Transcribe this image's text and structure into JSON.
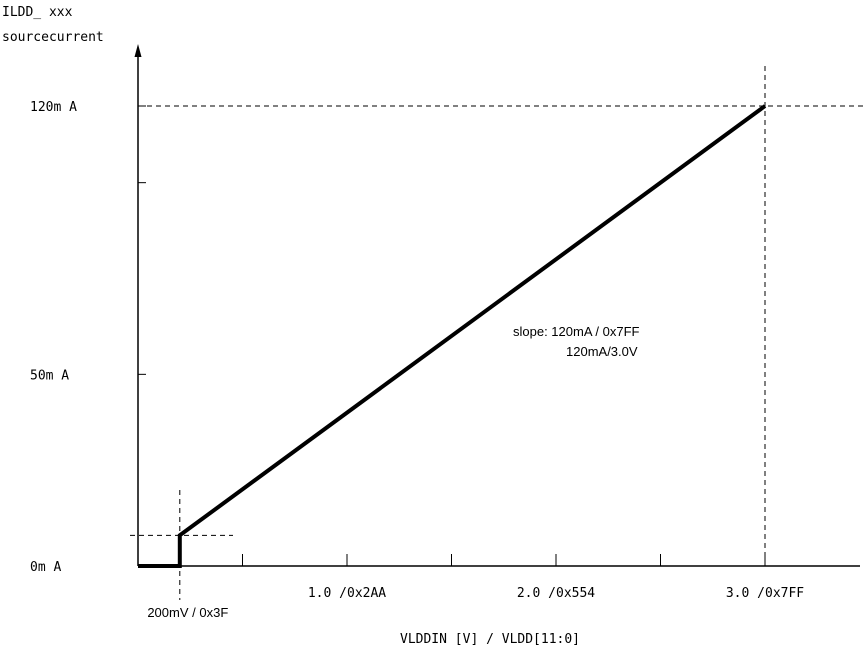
{
  "chart_data": {
    "type": "line",
    "ylabel_line1": "ILDD_ xxx",
    "ylabel_line2": "sourcecurrent",
    "xlabel": "VLDDIN [V] / VLDD[11:0]",
    "xlim": [
      0,
      3.4
    ],
    "ylim": [
      0,
      120
    ],
    "y_ticks": [
      {
        "value": 0,
        "label": "0m A"
      },
      {
        "value": 50,
        "label": "50m A"
      },
      {
        "value": 120,
        "label": "120m A"
      }
    ],
    "y_minor_ticks": [
      100
    ],
    "x_ticks": [
      {
        "value": 1.0,
        "label": "1.0 /0x2AA"
      },
      {
        "value": 2.0,
        "label": "2.0 /0x554"
      },
      {
        "value": 3.0,
        "label": "3.0 /0x7FF"
      }
    ],
    "x_minor_ticks": [
      0.5,
      1.5,
      2.5
    ],
    "x_start_label": "200mV / 0x3F",
    "series": [
      {
        "points": [
          {
            "x": 0.0,
            "y": 0
          },
          {
            "x": 0.2,
            "y": 0
          },
          {
            "x": 0.2,
            "y": 8
          },
          {
            "x": 3.0,
            "y": 120
          }
        ]
      }
    ],
    "guides": {
      "x": [
        0.2,
        3.0
      ],
      "y": [
        8,
        120
      ]
    },
    "annotation": {
      "line1": "slope: 120mA / 0x7FF",
      "line2": "120mA/3.0V"
    }
  }
}
